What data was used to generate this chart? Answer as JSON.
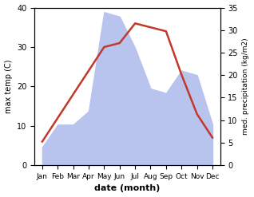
{
  "months": [
    "Jan",
    "Feb",
    "Mar",
    "Apr",
    "May",
    "Jun",
    "Jul",
    "Aug",
    "Sep",
    "Oct",
    "Nov",
    "Dec"
  ],
  "temperature": [
    6,
    12,
    18,
    24,
    30,
    31,
    36,
    35,
    34,
    23,
    13,
    7
  ],
  "precipitation": [
    4,
    9,
    9,
    12,
    34,
    33,
    26,
    17,
    16,
    21,
    20,
    9
  ],
  "temp_color": "#c0392b",
  "precip_fill_color": "#b8c4ee",
  "xlabel": "date (month)",
  "ylabel_left": "max temp (C)",
  "ylabel_right": "med. precipitation (kg/m2)",
  "ylim_left": [
    0,
    40
  ],
  "ylim_right": [
    0,
    35
  ],
  "yticks_left": [
    0,
    10,
    20,
    30,
    40
  ],
  "yticks_right": [
    0,
    5,
    10,
    15,
    20,
    25,
    30,
    35
  ],
  "bg_color": "#ffffff"
}
